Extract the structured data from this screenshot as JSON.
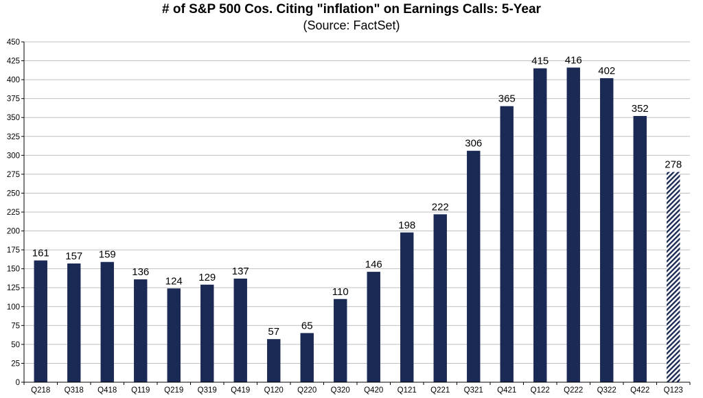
{
  "chart_data": {
    "type": "bar",
    "title": "# of S&P 500 Cos. Citing \"inflation\" on Earnings Calls: 5-Year",
    "subtitle": "(Source: FactSet)",
    "categories": [
      "Q218",
      "Q318",
      "Q418",
      "Q119",
      "Q219",
      "Q319",
      "Q419",
      "Q120",
      "Q220",
      "Q320",
      "Q420",
      "Q121",
      "Q221",
      "Q321",
      "Q421",
      "Q122",
      "Q222",
      "Q322",
      "Q422",
      "Q123"
    ],
    "values": [
      161,
      157,
      159,
      136,
      124,
      129,
      137,
      57,
      65,
      110,
      146,
      198,
      222,
      306,
      365,
      415,
      416,
      402,
      352,
      278
    ],
    "estimated": [
      false,
      false,
      false,
      false,
      false,
      false,
      false,
      false,
      false,
      false,
      false,
      false,
      false,
      false,
      false,
      false,
      false,
      false,
      false,
      true
    ],
    "xlabel": "",
    "ylabel": "",
    "ylim": [
      0,
      450
    ],
    "ytick_step": 25,
    "grid": true,
    "legend": "none",
    "colors": {
      "bar": "#1b2a55",
      "grid": "#bfbfbf",
      "axis": "#000000"
    }
  }
}
